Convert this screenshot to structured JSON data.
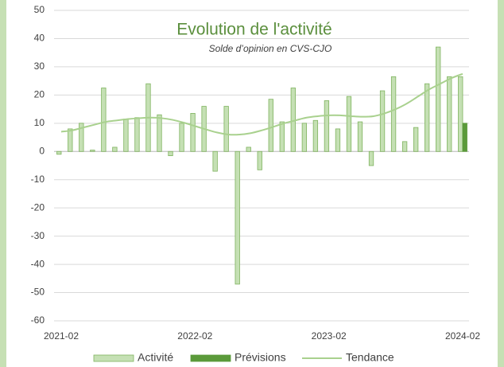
{
  "chart_data": {
    "type": "bar",
    "title": "Evolution de l'activité",
    "subtitle": "Solde d’opinion en CVS-CJO",
    "categories": [
      "2021-02",
      null,
      null,
      null,
      null,
      null,
      null,
      null,
      null,
      null,
      null,
      null,
      "2022-02",
      null,
      null,
      null,
      null,
      null,
      null,
      null,
      null,
      null,
      null,
      null,
      "2023-02",
      null,
      null,
      null,
      null,
      null,
      null,
      null,
      null,
      null,
      null,
      null,
      "2024-02"
    ],
    "series": [
      {
        "name": "Activité",
        "type": "bar",
        "color": "#c5e0b4",
        "stroke": "#7fb35f",
        "values": [
          -1,
          8,
          10,
          0.5,
          22.5,
          1.5,
          11.5,
          12,
          24,
          13,
          -1.5,
          10,
          13.5,
          16,
          -7,
          16,
          -47,
          1.5,
          -6.5,
          18.5,
          10.5,
          22.5,
          10,
          11,
          18,
          8,
          19.5,
          10.5,
          -5,
          21.5,
          26.5,
          3.5,
          8.5,
          24,
          37,
          26.5,
          26.5
        ]
      },
      {
        "name": "Prévisions",
        "type": "bar",
        "color": "#5b9a3a",
        "values": [
          null,
          null,
          null,
          null,
          null,
          null,
          null,
          null,
          null,
          null,
          null,
          null,
          null,
          null,
          null,
          null,
          null,
          null,
          null,
          null,
          null,
          null,
          null,
          null,
          null,
          null,
          null,
          null,
          null,
          null,
          null,
          null,
          null,
          null,
          null,
          null,
          10
        ]
      },
      {
        "name": "Tendance",
        "type": "line",
        "color": "#a9d18e",
        "values": [
          7,
          7.5,
          8.5,
          9.5,
          10.5,
          11,
          11.5,
          11.8,
          12,
          11.8,
          11.2,
          10.2,
          9,
          7.8,
          6.7,
          6,
          6,
          6.5,
          7.5,
          8.7,
          10,
          11,
          12,
          12.5,
          12.8,
          12.8,
          12.5,
          12.3,
          12.5,
          13.5,
          15,
          17,
          19.5,
          22,
          24,
          26,
          27.5
        ]
      }
    ],
    "ylim": [
      -60,
      50
    ],
    "yticks": [
      -60,
      -50,
      -40,
      -30,
      -20,
      -10,
      0,
      10,
      20,
      30,
      40,
      50
    ],
    "grid": true,
    "legend": "bottom"
  }
}
